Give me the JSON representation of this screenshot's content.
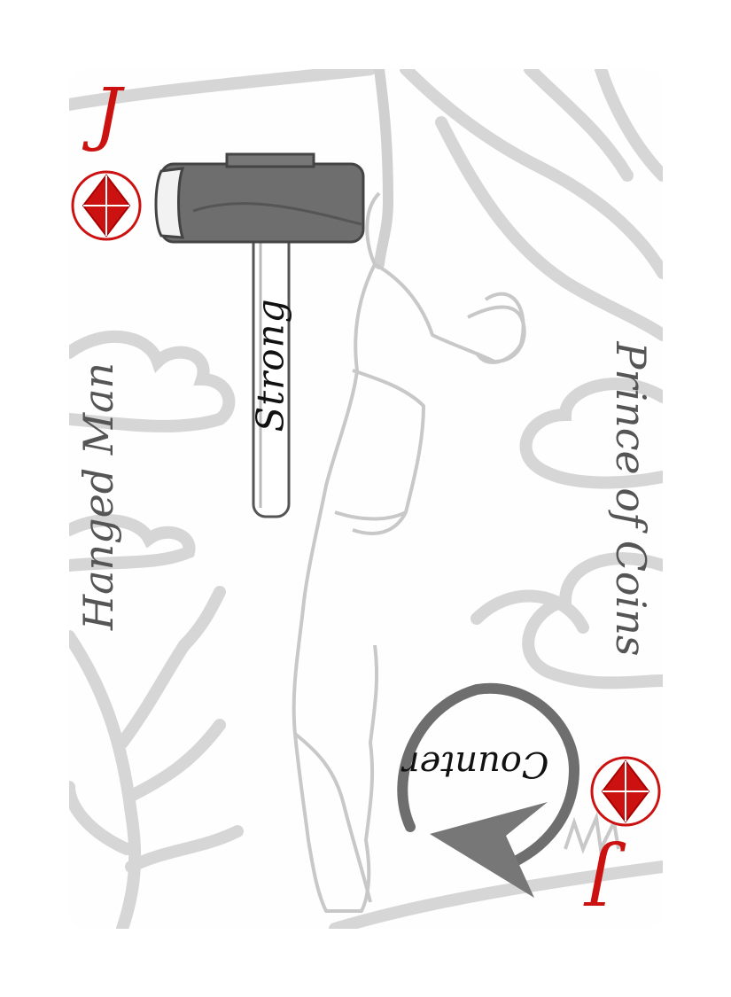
{
  "card": {
    "rank": "J",
    "suit": "diamond",
    "title": "Hanged Man",
    "subtitle": "Prince of Coins",
    "colors": {
      "suit": "#cc1111",
      "background_art": "#d4d4d4",
      "hammer": "#6e6e6e",
      "arrow": "#777777"
    }
  },
  "hammer": {
    "label": "Strong"
  },
  "counter": {
    "label": "Counter",
    "icon": "counter-arrow-icon"
  }
}
